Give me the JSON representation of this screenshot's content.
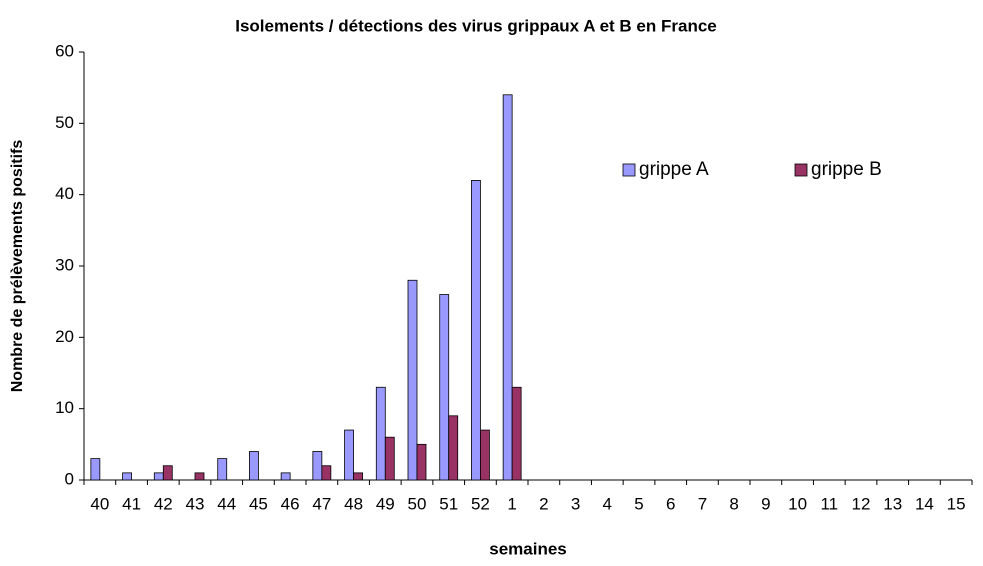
{
  "chart_data": {
    "type": "bar",
    "title": "Isolements / détections des virus grippaux A et B en France",
    "x_label": "semaines",
    "y_label": "Nombre de prélèvements positifs",
    "categories": [
      "40",
      "41",
      "42",
      "43",
      "44",
      "45",
      "46",
      "47",
      "48",
      "49",
      "50",
      "51",
      "52",
      "1",
      "2",
      "3",
      "4",
      "5",
      "6",
      "7",
      "8",
      "9",
      "10",
      "11",
      "12",
      "13",
      "14",
      "15"
    ],
    "series": [
      {
        "name": "grippe A",
        "color": "#9999ff",
        "values": [
          3,
          1,
          1,
          0,
          3,
          4,
          1,
          4,
          7,
          13,
          28,
          26,
          42,
          54,
          null,
          null,
          null,
          null,
          null,
          null,
          null,
          null,
          null,
          null,
          null,
          null,
          null,
          null
        ]
      },
      {
        "name": "grippe B",
        "color": "#993366",
        "values": [
          0,
          0,
          2,
          1,
          0,
          0,
          0,
          2,
          1,
          6,
          5,
          9,
          7,
          13,
          null,
          null,
          null,
          null,
          null,
          null,
          null,
          null,
          null,
          null,
          null,
          null,
          null,
          null
        ]
      }
    ],
    "ylim": [
      0,
      60
    ],
    "yticks": [
      0,
      10,
      20,
      30,
      40,
      50,
      60
    ],
    "grid": false,
    "legend": "upper-right"
  }
}
